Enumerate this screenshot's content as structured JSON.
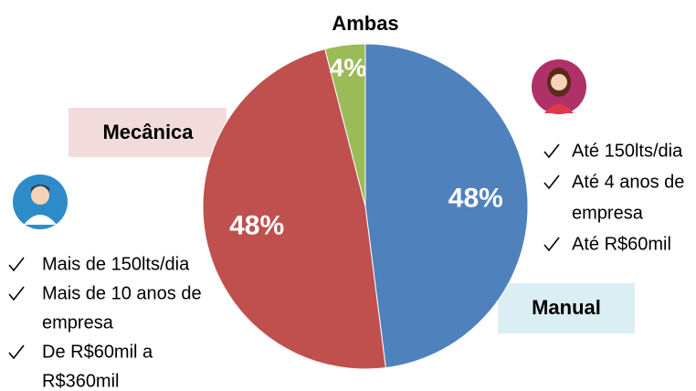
{
  "chart_data": {
    "type": "pie",
    "categories": [
      "Manual",
      "Mecânica",
      "Ambas"
    ],
    "values": [
      48,
      48,
      4
    ],
    "value_labels": [
      "48%",
      "48%",
      "4%"
    ],
    "colors": [
      "#4f81bd",
      "#c0504d",
      "#9bbb59"
    ],
    "profiles": [
      {
        "items": [
          [
            "Até 150lts/dia"
          ],
          [
            "Até 4 anos de",
            "empresa"
          ],
          [
            "Até R$60mil"
          ]
        ]
      },
      {
        "items": [
          [
            "Mais de 150lts/dia"
          ],
          [
            "Mais de 10 anos de",
            "empresa"
          ],
          [
            "De R$60mil a",
            "R$360mil"
          ]
        ]
      }
    ]
  }
}
